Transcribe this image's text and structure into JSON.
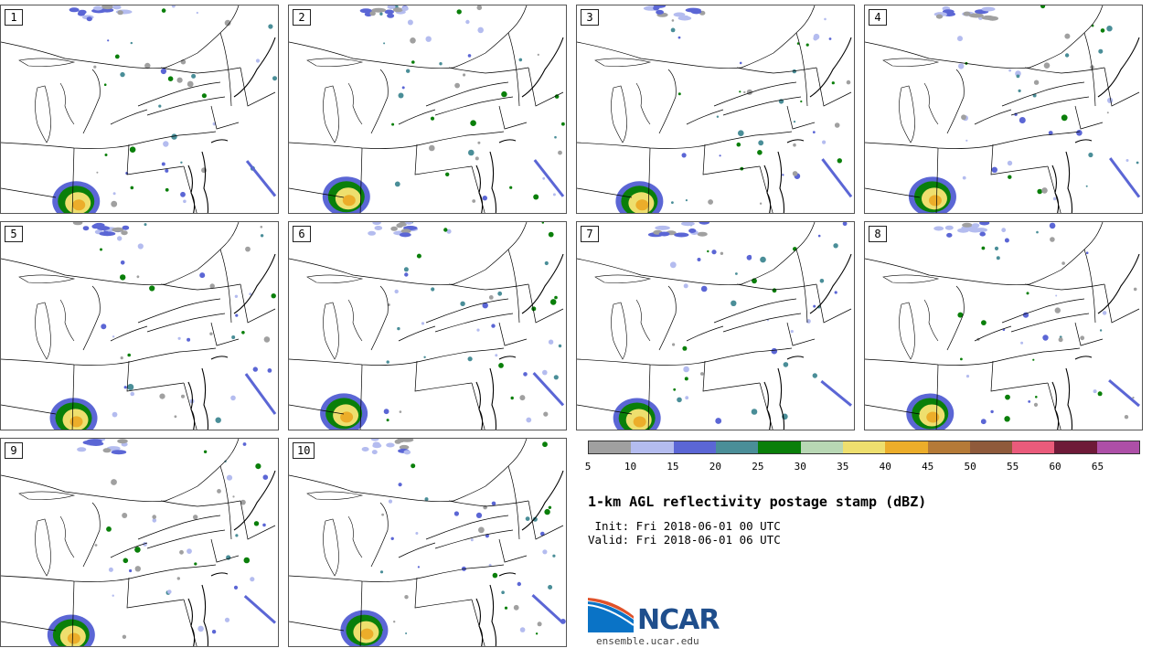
{
  "panels": [
    {
      "label": "1"
    },
    {
      "label": "2"
    },
    {
      "label": "3"
    },
    {
      "label": "4"
    },
    {
      "label": "5"
    },
    {
      "label": "6"
    },
    {
      "label": "7"
    },
    {
      "label": "8"
    },
    {
      "label": "9"
    },
    {
      "label": "10"
    }
  ],
  "colorbar": {
    "colors": [
      "#a0a0a0",
      "#b4bcef",
      "#5b66d5",
      "#4a8e98",
      "#0a7f0a",
      "#b8d7b4",
      "#eedf6e",
      "#ecad2a",
      "#b57a37",
      "#8f5a3b",
      "#ea5b7b",
      "#6e1a38",
      "#ad4fa7"
    ],
    "ticks": [
      "5",
      "10",
      "15",
      "20",
      "25",
      "30",
      "35",
      "40",
      "45",
      "50",
      "55",
      "60",
      "65"
    ]
  },
  "title": "1-km AGL reflectivity postage stamp (dBZ)",
  "init": " Init: Fri 2018-06-01 00 UTC",
  "valid": "Valid: Fri 2018-06-01 06 UTC",
  "logo": {
    "text": "NCAR",
    "url": "ensemble.ucar.edu"
  }
}
